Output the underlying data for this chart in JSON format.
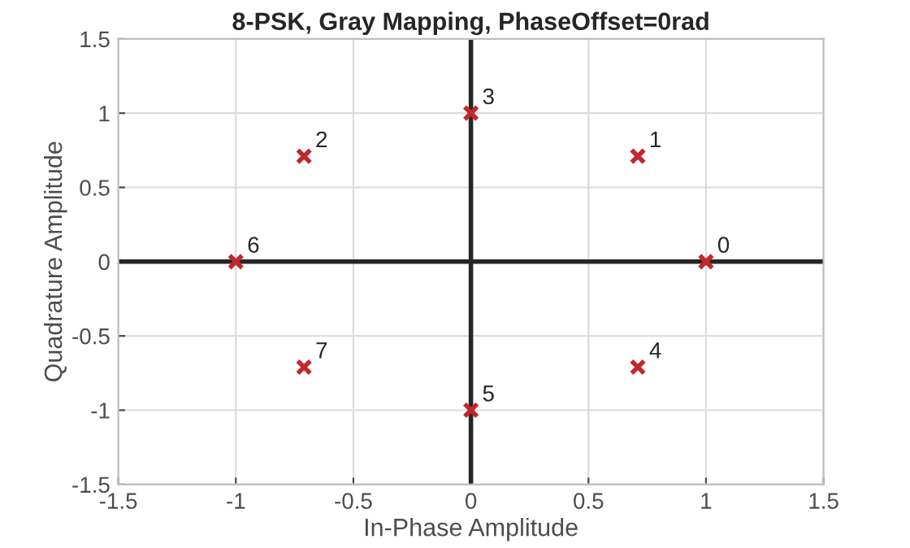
{
  "chart_data": {
    "type": "scatter",
    "title": "8-PSK, Gray Mapping, PhaseOffset=0rad",
    "xlabel": "In-Phase Amplitude",
    "ylabel": "Quadrature Amplitude",
    "series": [
      {
        "type": "line",
        "marker": "none",
        "color": "#262626",
        "x": [
          0,
          0
        ],
        "values": [
          -1.5,
          1.5
        ]
      },
      {
        "type": "line",
        "marker": "none",
        "color": "#262626",
        "x": [
          -1.5,
          1.5
        ],
        "values": [
          0,
          0
        ]
      },
      {
        "color": "#c0282b",
        "x": [
          1,
          0.71,
          -0.71,
          0,
          0.71,
          0,
          -1,
          -0.71
        ],
        "values": [
          0,
          0.71,
          0.71,
          1,
          -0.71,
          -1,
          0,
          -0.71
        ]
      }
    ],
    "annotations": [
      {
        "text": "0",
        "x": 1,
        "y": 0
      },
      {
        "text": "1",
        "x": 0.71,
        "y": 0.71
      },
      {
        "text": "2",
        "x": -0.71,
        "y": 0.71
      },
      {
        "text": "3",
        "x": 0,
        "y": 1
      },
      {
        "text": "4",
        "x": 0.71,
        "y": -0.71
      },
      {
        "text": "5",
        "x": 0,
        "y": -1
      },
      {
        "text": "6",
        "x": -1,
        "y": 0
      },
      {
        "text": "7",
        "x": -0.71,
        "y": -0.71
      }
    ],
    "xlim": [
      -1.5,
      1.5
    ],
    "ylim": [
      -1.5,
      1.5
    ],
    "xticks": [
      -1.5,
      -1,
      -0.5,
      0,
      0.5,
      1,
      1.5
    ],
    "yticks": [
      -1.5,
      -1,
      -0.5,
      0,
      0.5,
      1,
      1.5
    ],
    "grid": true,
    "marker": "cross"
  }
}
